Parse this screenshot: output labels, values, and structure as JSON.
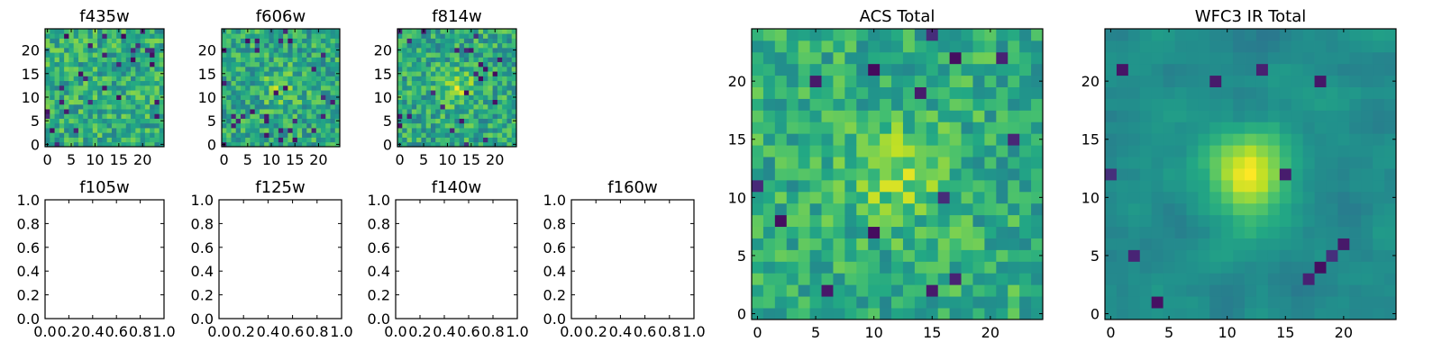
{
  "chart_data": [
    {
      "type": "heatmap",
      "title": "f435w",
      "colormap": "viridis",
      "grid": false,
      "n_pixels": 25,
      "xlim": [
        -0.5,
        24.5
      ],
      "ylim": [
        -0.5,
        24.5
      ],
      "xticks": [
        0,
        5,
        10,
        15,
        20
      ],
      "yticks": [
        0,
        5,
        10,
        15,
        20
      ],
      "pattern": {
        "type": "noise",
        "seed": 11,
        "base": 0.62,
        "noise": 0.2,
        "peak": 0.0,
        "sigma": 3,
        "cx": 12,
        "cy": 12,
        "dark_frac": 0.05
      }
    },
    {
      "type": "heatmap",
      "title": "f606w",
      "colormap": "viridis",
      "grid": false,
      "n_pixels": 25,
      "xlim": [
        -0.5,
        24.5
      ],
      "ylim": [
        -0.5,
        24.5
      ],
      "xticks": [
        0,
        5,
        10,
        15,
        20
      ],
      "yticks": [
        0,
        5,
        10,
        15,
        20
      ],
      "pattern": {
        "type": "noise",
        "seed": 23,
        "base": 0.6,
        "noise": 0.2,
        "peak": 0.18,
        "sigma": 2.5,
        "cx": 12,
        "cy": 12,
        "dark_frac": 0.04
      }
    },
    {
      "type": "heatmap",
      "title": "f814w",
      "colormap": "viridis",
      "grid": false,
      "n_pixels": 25,
      "xlim": [
        -0.5,
        24.5
      ],
      "ylim": [
        -0.5,
        24.5
      ],
      "xticks": [
        0,
        5,
        10,
        15,
        20
      ],
      "yticks": [
        0,
        5,
        10,
        15,
        20
      ],
      "pattern": {
        "type": "noise",
        "seed": 37,
        "base": 0.6,
        "noise": 0.2,
        "peak": 0.22,
        "sigma": 2.5,
        "cx": 12,
        "cy": 12,
        "dark_frac": 0.04
      }
    },
    {
      "type": "line",
      "title": "f105w",
      "series": [],
      "grid": false,
      "xlim": [
        0.0,
        1.0
      ],
      "ylim": [
        0.0,
        1.0
      ],
      "xticks": [
        "0.0",
        "0.2",
        "0.4",
        "0.6",
        "0.8",
        "1.0"
      ],
      "yticks": [
        "0.0",
        "0.2",
        "0.4",
        "0.6",
        "0.8",
        "1.0"
      ]
    },
    {
      "type": "line",
      "title": "f125w",
      "series": [],
      "grid": false,
      "xlim": [
        0.0,
        1.0
      ],
      "ylim": [
        0.0,
        1.0
      ],
      "xticks": [
        "0.0",
        "0.2",
        "0.4",
        "0.6",
        "0.8",
        "1.0"
      ],
      "yticks": [
        "0.0",
        "0.2",
        "0.4",
        "0.6",
        "0.8",
        "1.0"
      ]
    },
    {
      "type": "line",
      "title": "f140w",
      "series": [],
      "grid": false,
      "xlim": [
        0.0,
        1.0
      ],
      "ylim": [
        0.0,
        1.0
      ],
      "xticks": [
        "0.0",
        "0.2",
        "0.4",
        "0.6",
        "0.8",
        "1.0"
      ],
      "yticks": [
        "0.0",
        "0.2",
        "0.4",
        "0.6",
        "0.8",
        "1.0"
      ]
    },
    {
      "type": "line",
      "title": "f160w",
      "series": [],
      "grid": false,
      "xlim": [
        0.0,
        1.0
      ],
      "ylim": [
        0.0,
        1.0
      ],
      "xticks": [
        "0.0",
        "0.2",
        "0.4",
        "0.6",
        "0.8",
        "1.0"
      ],
      "yticks": [
        "0.0",
        "0.2",
        "0.4",
        "0.6",
        "0.8",
        "1.0"
      ]
    },
    {
      "type": "heatmap",
      "title": "ACS Total",
      "colormap": "viridis",
      "grid": false,
      "n_pixels": 25,
      "xlim": [
        -0.5,
        24.5
      ],
      "ylim": [
        -0.5,
        24.5
      ],
      "xticks": [
        0,
        5,
        10,
        15,
        20
      ],
      "yticks": [
        0,
        5,
        10,
        15,
        20
      ],
      "pattern": {
        "type": "noise",
        "seed": 53,
        "base": 0.62,
        "noise": 0.17,
        "peak": 0.2,
        "sigma": 3,
        "cx": 12,
        "cy": 12,
        "dark_frac": 0.03
      }
    },
    {
      "type": "heatmap",
      "title": "WFC3 IR Total",
      "colormap": "viridis",
      "grid": false,
      "n_pixels": 25,
      "xlim": [
        -0.5,
        24.5
      ],
      "ylim": [
        -0.5,
        24.5
      ],
      "xticks": [
        0,
        5,
        10,
        15,
        20
      ],
      "yticks": [
        0,
        5,
        10,
        15,
        20
      ],
      "pattern": {
        "type": "smooth",
        "seed": 71,
        "base": 0.48,
        "noise": 0.07,
        "peak": 0.48,
        "sigma": 2.6,
        "cx": 12,
        "cy": 12,
        "dark_frac": 0.02
      }
    }
  ]
}
